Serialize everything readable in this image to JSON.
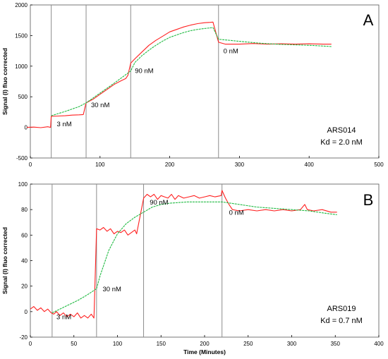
{
  "colors": {
    "measured": "#ff2020",
    "fit": "#22bb44",
    "marker": "#8c8c8c",
    "axis": "#000000",
    "frame": "#555555"
  },
  "chart_data": [
    {
      "type": "line",
      "panel_label": "A",
      "ylabel": "Signal (I) fluo corrected",
      "xlabel": "",
      "xlim": [
        0,
        500
      ],
      "ylim": [
        -500,
        2000
      ],
      "xticks": [
        0,
        100,
        200,
        300,
        400,
        500
      ],
      "yticks": [
        -500,
        0,
        500,
        1000,
        1500,
        2000
      ],
      "grid": false,
      "injection_times": [
        30,
        80,
        144,
        270
      ],
      "annotations": [
        {
          "text": "3 nM",
          "x": 38,
          "y": 20
        },
        {
          "text": "30 nM",
          "x": 87,
          "y": 330
        },
        {
          "text": "90 nM",
          "x": 150,
          "y": 890
        },
        {
          "text": "0 nM",
          "x": 277,
          "y": 1210
        }
      ],
      "info": {
        "name": "ARS014",
        "kd": "Kd = 2.0 nM"
      },
      "series": [
        {
          "role": "measured",
          "points": [
            [
              -5,
              0
            ],
            [
              5,
              5
            ],
            [
              15,
              -5
            ],
            [
              25,
              10
            ],
            [
              29,
              0
            ],
            [
              30,
              180
            ],
            [
              40,
              185
            ],
            [
              50,
              190
            ],
            [
              60,
              200
            ],
            [
              70,
              205
            ],
            [
              76,
              210
            ],
            [
              80,
              400
            ],
            [
              90,
              460
            ],
            [
              100,
              540
            ],
            [
              110,
              620
            ],
            [
              120,
              700
            ],
            [
              130,
              760
            ],
            [
              137,
              800
            ],
            [
              140,
              850
            ],
            [
              144,
              1050
            ],
            [
              150,
              1120
            ],
            [
              160,
              1230
            ],
            [
              170,
              1340
            ],
            [
              180,
              1420
            ],
            [
              190,
              1490
            ],
            [
              200,
              1560
            ],
            [
              210,
              1600
            ],
            [
              220,
              1640
            ],
            [
              230,
              1670
            ],
            [
              240,
              1695
            ],
            [
              250,
              1710
            ],
            [
              258,
              1715
            ],
            [
              262,
              1720
            ],
            [
              270,
              1390
            ],
            [
              280,
              1360
            ],
            [
              300,
              1360
            ],
            [
              320,
              1370
            ],
            [
              340,
              1360
            ],
            [
              360,
              1365
            ],
            [
              380,
              1360
            ],
            [
              400,
              1365
            ],
            [
              420,
              1360
            ],
            [
              432,
              1360
            ]
          ]
        },
        {
          "role": "fit",
          "points": [
            [
              30,
              190
            ],
            [
              50,
              260
            ],
            [
              70,
              340
            ],
            [
              80,
              400
            ],
            [
              100,
              560
            ],
            [
              120,
              720
            ],
            [
              144,
              920
            ],
            [
              150,
              1060
            ],
            [
              160,
              1170
            ],
            [
              170,
              1260
            ],
            [
              180,
              1340
            ],
            [
              190,
              1410
            ],
            [
              200,
              1470
            ],
            [
              210,
              1510
            ],
            [
              220,
              1550
            ],
            [
              230,
              1580
            ],
            [
              240,
              1600
            ],
            [
              250,
              1615
            ],
            [
              262,
              1630
            ],
            [
              270,
              1440
            ],
            [
              300,
              1405
            ],
            [
              330,
              1375
            ],
            [
              360,
              1355
            ],
            [
              390,
              1345
            ],
            [
              410,
              1335
            ],
            [
              432,
              1320
            ]
          ]
        }
      ]
    },
    {
      "type": "line",
      "panel_label": "B",
      "ylabel": "Signal (I) fluo corrected",
      "xlabel": "Time (Minutes)",
      "xlim": [
        0,
        400
      ],
      "ylim": [
        -20,
        100
      ],
      "xticks": [
        0,
        50,
        100,
        150,
        200,
        250,
        300,
        350,
        400
      ],
      "yticks": [
        -20,
        0,
        20,
        40,
        60,
        80,
        100
      ],
      "grid": false,
      "injection_times": [
        25,
        76,
        130,
        220
      ],
      "annotations": [
        {
          "text": "3 nM",
          "x": 30,
          "y": -6
        },
        {
          "text": "30 nM",
          "x": 83,
          "y": 16
        },
        {
          "text": "90 nM",
          "x": 137,
          "y": 84
        },
        {
          "text": "0 nM",
          "x": 228,
          "y": 76
        }
      ],
      "info": {
        "name": "ARS019",
        "kd": "Kd = 0.7 nM"
      },
      "series": [
        {
          "role": "measured",
          "points": [
            [
              0,
              2
            ],
            [
              4,
              4
            ],
            [
              8,
              1
            ],
            [
              12,
              3
            ],
            [
              16,
              0
            ],
            [
              20,
              2
            ],
            [
              24,
              -1
            ],
            [
              27,
              -2
            ],
            [
              30,
              0
            ],
            [
              34,
              -3
            ],
            [
              38,
              -1
            ],
            [
              42,
              -4
            ],
            [
              46,
              -2
            ],
            [
              50,
              -4
            ],
            [
              54,
              -1
            ],
            [
              58,
              -5
            ],
            [
              62,
              -3
            ],
            [
              66,
              -5
            ],
            [
              70,
              -2
            ],
            [
              73,
              -5
            ],
            [
              76,
              65
            ],
            [
              80,
              64
            ],
            [
              84,
              66
            ],
            [
              88,
              63
            ],
            [
              92,
              65
            ],
            [
              96,
              61
            ],
            [
              100,
              63
            ],
            [
              104,
              62
            ],
            [
              108,
              64
            ],
            [
              112,
              60
            ],
            [
              116,
              62
            ],
            [
              120,
              64
            ],
            [
              122,
              61
            ],
            [
              130,
              89
            ],
            [
              134,
              92
            ],
            [
              138,
              90
            ],
            [
              142,
              92
            ],
            [
              146,
              88
            ],
            [
              150,
              91
            ],
            [
              154,
              90
            ],
            [
              158,
              89
            ],
            [
              162,
              92
            ],
            [
              166,
              88
            ],
            [
              170,
              91
            ],
            [
              176,
              89
            ],
            [
              182,
              90
            ],
            [
              188,
              91
            ],
            [
              194,
              89
            ],
            [
              200,
              90
            ],
            [
              206,
              91
            ],
            [
              212,
              90
            ],
            [
              219,
              91
            ],
            [
              220,
              95
            ],
            [
              224,
              89
            ],
            [
              228,
              84
            ],
            [
              232,
              80
            ],
            [
              240,
              79
            ],
            [
              250,
              80
            ],
            [
              260,
              79
            ],
            [
              270,
              80
            ],
            [
              280,
              79
            ],
            [
              290,
              80
            ],
            [
              300,
              79
            ],
            [
              310,
              80
            ],
            [
              315,
              84
            ],
            [
              318,
              80
            ],
            [
              325,
              79
            ],
            [
              335,
              80
            ],
            [
              345,
              78
            ],
            [
              352,
              78
            ]
          ]
        },
        {
          "role": "fit",
          "points": [
            [
              25,
              -1
            ],
            [
              40,
              4
            ],
            [
              55,
              9
            ],
            [
              65,
              13
            ],
            [
              76,
              18
            ],
            [
              80,
              28
            ],
            [
              90,
              48
            ],
            [
              100,
              61
            ],
            [
              110,
              69
            ],
            [
              120,
              74
            ],
            [
              130,
              78
            ],
            [
              140,
              82
            ],
            [
              150,
              84
            ],
            [
              160,
              85
            ],
            [
              170,
              85.5
            ],
            [
              180,
              86
            ],
            [
              200,
              86
            ],
            [
              220,
              86
            ],
            [
              240,
              84
            ],
            [
              260,
              82
            ],
            [
              280,
              81
            ],
            [
              300,
              80
            ],
            [
              320,
              79
            ],
            [
              340,
              77
            ],
            [
              352,
              76
            ]
          ]
        }
      ]
    }
  ]
}
